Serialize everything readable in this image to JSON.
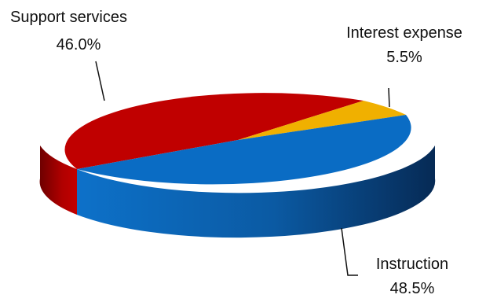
{
  "chart_data": {
    "type": "pie",
    "title": "",
    "categories": [
      "Support services",
      "Interest expense",
      "Instruction"
    ],
    "values": [
      46.0,
      5.5,
      48.5
    ],
    "value_labels": [
      "46.0%",
      "5.5%",
      "48.5%"
    ],
    "colors": [
      "#c00000",
      "#f0b000",
      "#0a6cc4"
    ],
    "style": "3d",
    "legend": "none"
  }
}
